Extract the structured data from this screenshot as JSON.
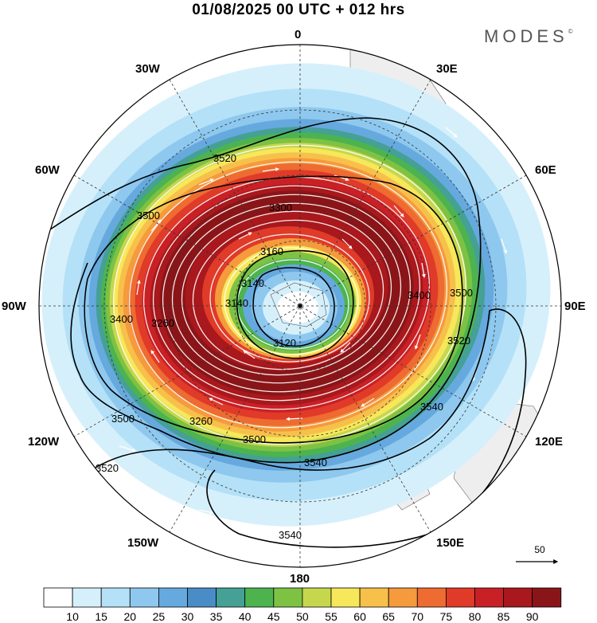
{
  "title": "01/08/2025  00 UTC  + 012 hrs",
  "brand": "MODES",
  "brand_mark": "©",
  "longitude_labels": {
    "lon_0": "0",
    "lon_30e": "30E",
    "lon_60e": "60E",
    "lon_90e": "90E",
    "lon_120e": "120E",
    "lon_150e": "150E",
    "lon_180": "180",
    "lon_150w": "150W",
    "lon_120w": "120W",
    "lon_90w": "90W",
    "lon_60w": "60W",
    "lon_30w": "30W"
  },
  "contour_labels": [
    "3520",
    "3500",
    "3160",
    "3140",
    "3120",
    "3140",
    "3260",
    "3300",
    "3400",
    "3500",
    "3520",
    "3540",
    "3500",
    "3500",
    "3540",
    "3520",
    "3540",
    "3400",
    "3260"
  ],
  "reference_vector": "50",
  "colorbar": {
    "labels": [
      "10",
      "15",
      "20",
      "25",
      "30",
      "35",
      "40",
      "45",
      "50",
      "55",
      "60",
      "65",
      "70",
      "75",
      "80",
      "85",
      "90"
    ],
    "colors": [
      "#ffffff",
      "#d6f0fb",
      "#b4e1f7",
      "#8ec8ee",
      "#66a9de",
      "#4a8cc6",
      "#45a095",
      "#4db34f",
      "#7ec243",
      "#c6d74e",
      "#f7e75a",
      "#f7c04b",
      "#f59a3d",
      "#ee6b31",
      "#e03a29",
      "#c92026",
      "#a8181c",
      "#8a1518"
    ]
  }
}
